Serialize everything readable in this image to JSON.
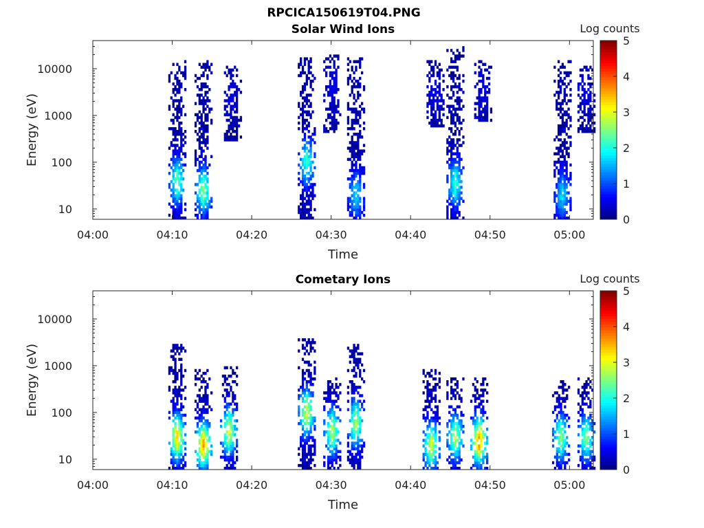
{
  "figure_title": "RPCICA150619T04.PNG",
  "chart_data": [
    {
      "type": "heatmap",
      "title": "Solar Wind Ions",
      "xlabel": "Time",
      "ylabel": "Energy (eV)",
      "xlim": [
        "04:00",
        "05:03"
      ],
      "ylim": [
        6,
        40000
      ],
      "yscale": "log",
      "x_ticks": [
        "04:00",
        "04:10",
        "04:20",
        "04:30",
        "04:40",
        "04:50",
        "05:00"
      ],
      "y_ticks": [
        "10",
        "100",
        "1000",
        "10000"
      ],
      "colorbar": {
        "label": "Log counts",
        "range": [
          0,
          5
        ],
        "ticks": [
          "0",
          "1",
          "2",
          "3",
          "4",
          "5"
        ],
        "colormap": "jet"
      },
      "bursts": [
        {
          "t_min": 10.5,
          "e_min": 6,
          "e_max": 15000,
          "core_e": 40,
          "core_level": 2.2
        },
        {
          "t_min": 13.8,
          "e_min": 6,
          "e_max": 15000,
          "core_e": 25,
          "core_level": 2.4
        },
        {
          "t_min": 17.5,
          "e_min": 300,
          "e_max": 12000,
          "core_e": 3000,
          "core_level": 0.3
        },
        {
          "t_min": 26.8,
          "e_min": 6,
          "e_max": 18000,
          "core_e": 100,
          "core_level": 2.0
        },
        {
          "t_min": 30.0,
          "e_min": 400,
          "e_max": 20000,
          "core_e": 5000,
          "core_level": 0.3
        },
        {
          "t_min": 33.0,
          "e_min": 6,
          "e_max": 18000,
          "core_e": 20,
          "core_level": 1.6
        },
        {
          "t_min": 43.0,
          "e_min": 600,
          "e_max": 15000,
          "core_e": 3000,
          "core_level": 0.3
        },
        {
          "t_min": 45.5,
          "e_min": 6,
          "e_max": 30000,
          "core_e": 35,
          "core_level": 2.0
        },
        {
          "t_min": 49.0,
          "e_min": 700,
          "e_max": 15000,
          "core_e": 3000,
          "core_level": 0.3
        },
        {
          "t_min": 59.0,
          "e_min": 6,
          "e_max": 18000,
          "core_e": 20,
          "core_level": 1.6
        },
        {
          "t_min": 62.0,
          "e_min": 400,
          "e_max": 12000,
          "core_e": 3000,
          "core_level": 0.3
        }
      ]
    },
    {
      "type": "heatmap",
      "title": "Cometary Ions",
      "xlabel": "Time",
      "ylabel": "Energy (eV)",
      "xlim": [
        "04:00",
        "05:03"
      ],
      "ylim": [
        6,
        40000
      ],
      "yscale": "log",
      "x_ticks": [
        "04:00",
        "04:10",
        "04:20",
        "04:30",
        "04:40",
        "04:50",
        "05:00"
      ],
      "y_ticks": [
        "10",
        "100",
        "1000",
        "10000"
      ],
      "colorbar": {
        "label": "Log counts",
        "range": [
          0,
          5
        ],
        "ticks": [
          "0",
          "1",
          "2",
          "3",
          "4",
          "5"
        ],
        "colormap": "jet"
      },
      "bursts": [
        {
          "t_min": 10.5,
          "e_min": 6,
          "e_max": 3000,
          "core_e": 30,
          "core_level": 3.2
        },
        {
          "t_min": 13.8,
          "e_min": 6,
          "e_max": 800,
          "core_e": 20,
          "core_level": 3.4
        },
        {
          "t_min": 17.0,
          "e_min": 6,
          "e_max": 1000,
          "core_e": 40,
          "core_level": 2.8
        },
        {
          "t_min": 26.8,
          "e_min": 6,
          "e_max": 4000,
          "core_e": 100,
          "core_level": 2.8
        },
        {
          "t_min": 30.0,
          "e_min": 6,
          "e_max": 600,
          "core_e": 40,
          "core_level": 2.6
        },
        {
          "t_min": 33.0,
          "e_min": 6,
          "e_max": 3000,
          "core_e": 60,
          "core_level": 2.6
        },
        {
          "t_min": 42.5,
          "e_min": 6,
          "e_max": 800,
          "core_e": 20,
          "core_level": 2.8
        },
        {
          "t_min": 45.5,
          "e_min": 6,
          "e_max": 600,
          "core_e": 30,
          "core_level": 2.6
        },
        {
          "t_min": 48.5,
          "e_min": 6,
          "e_max": 600,
          "core_e": 25,
          "core_level": 3.6
        },
        {
          "t_min": 58.8,
          "e_min": 6,
          "e_max": 500,
          "core_e": 30,
          "core_level": 2.4
        },
        {
          "t_min": 62.0,
          "e_min": 6,
          "e_max": 600,
          "core_e": 30,
          "core_level": 2.4
        }
      ]
    }
  ]
}
